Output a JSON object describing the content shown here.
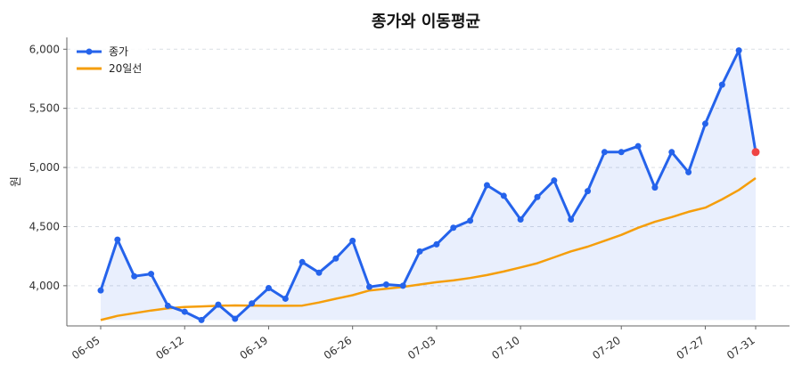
{
  "chart_data": {
    "type": "line",
    "title": "종가와 이동평균",
    "xlabel": "",
    "ylabel": "원",
    "ylim": [
      3660,
      6100
    ],
    "yticks": [
      4000,
      4500,
      5000,
      5500,
      6000
    ],
    "ytick_labels": [
      "4,000",
      "4,500",
      "5,000",
      "5,500",
      "6,000"
    ],
    "xtick_labels": [
      "06-05",
      "06-12",
      "06-19",
      "06-26",
      "07-03",
      "07-10",
      "07-20",
      "07-27",
      "07-31"
    ],
    "xtick_indices": [
      0,
      5,
      10,
      15,
      20,
      25,
      31,
      36,
      39
    ],
    "x": [
      "06-05",
      "06-06",
      "06-07",
      "06-08",
      "06-09",
      "06-12",
      "06-13",
      "06-14",
      "06-15",
      "06-16",
      "06-19",
      "06-20",
      "06-21",
      "06-22",
      "06-23",
      "06-26",
      "06-27",
      "06-28",
      "06-29",
      "06-30",
      "07-03",
      "07-04",
      "07-05",
      "07-06",
      "07-07",
      "07-10",
      "07-11",
      "07-12",
      "07-13",
      "07-14",
      "07-17",
      "07-20",
      "07-21",
      "07-24",
      "07-25",
      "07-26",
      "07-27",
      "07-28",
      "07-29",
      "07-31"
    ],
    "series": [
      {
        "name": "종가",
        "color": "#2563eb",
        "marker": "circle",
        "fill_below": true,
        "values": [
          3960,
          4390,
          4080,
          4100,
          3830,
          3780,
          3710,
          3840,
          3720,
          3850,
          3980,
          3890,
          4200,
          4110,
          4230,
          4380,
          3990,
          4010,
          4000,
          4290,
          4350,
          4490,
          4550,
          4850,
          4760,
          4560,
          4750,
          4890,
          4560,
          4800,
          5130,
          5130,
          5180,
          4830,
          5130,
          4960,
          5370,
          5700,
          5990,
          5130
        ]
      },
      {
        "name": "20일선",
        "color": "#f59e0b",
        "values": [
          3710,
          3745,
          3768,
          3790,
          3808,
          3820,
          3825,
          3830,
          3833,
          3832,
          3830,
          3830,
          3832,
          3858,
          3890,
          3920,
          3960,
          3975,
          3990,
          4010,
          4030,
          4045,
          4065,
          4090,
          4120,
          4155,
          4190,
          4240,
          4290,
          4330,
          4380,
          4430,
          4490,
          4540,
          4580,
          4625,
          4660,
          4730,
          4810,
          4910
        ]
      }
    ],
    "last_point_color": "#ef4444",
    "grid": "y-dashed",
    "legend_position": "top-left"
  }
}
